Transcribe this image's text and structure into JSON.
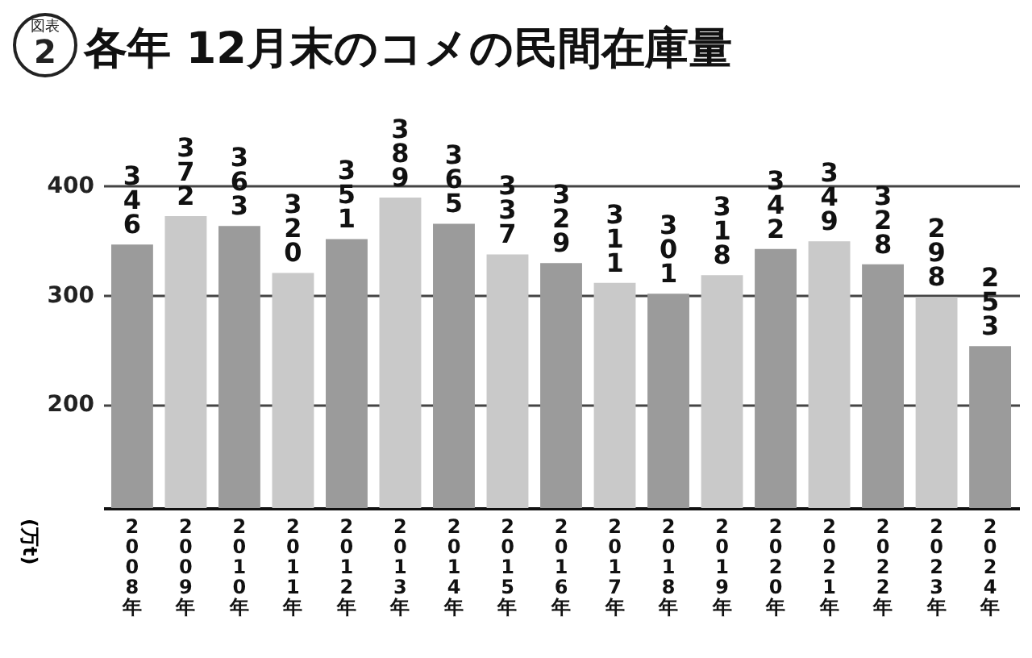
{
  "chart_data": {
    "type": "bar",
    "title": "各年 12月末のコメの民間在庫量",
    "annotations": [
      "図表",
      "2"
    ],
    "ylabel": "(万t)",
    "categories": [
      "2008年",
      "2009年",
      "2010年",
      "2011年",
      "2012年",
      "2013年",
      "2014年",
      "2015年",
      "2016年",
      "2017年",
      "2018年",
      "2019年",
      "2020年",
      "2021年",
      "2022年",
      "2023年",
      "2024年"
    ],
    "values": [
      346,
      372,
      363,
      320,
      351,
      389,
      365,
      337,
      329,
      311,
      301,
      318,
      342,
      349,
      328,
      298,
      253
    ],
    "colors": [
      "#9b9b9b",
      "#c9c9c9",
      "#9b9b9b",
      "#c9c9c9",
      "#9b9b9b",
      "#c9c9c9",
      "#9b9b9b",
      "#c9c9c9",
      "#9b9b9b",
      "#c9c9c9",
      "#9b9b9b",
      "#c9c9c9",
      "#9b9b9b",
      "#c9c9c9",
      "#9b9b9b",
      "#c9c9c9",
      "#9b9b9b"
    ],
    "ylim": [
      105,
      400
    ],
    "yticks": [
      200,
      300,
      400
    ],
    "grid": "y",
    "data_labels": true
  }
}
